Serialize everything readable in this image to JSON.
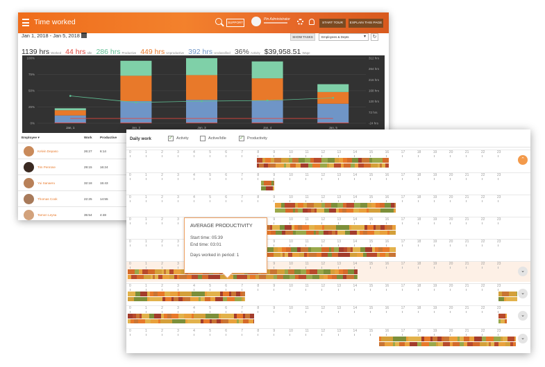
{
  "window1": {
    "title": "Time worked",
    "support_label": "SUPPORT",
    "user_name": "Pin Administrator",
    "start_tour_label": "START TOUR",
    "explain_label": "EXPLAIN THIS PAGE",
    "date_range": "Jan 1, 2018 - Jan 5, 2018",
    "show_tasks_label": "SHOW TASKS",
    "employee_select": "Employees & Depts",
    "stats": [
      {
        "value": "1139 hrs",
        "label": "Worked",
        "color": "#333333"
      },
      {
        "value": "44 hrs",
        "label": "Idle",
        "color": "#e0463c"
      },
      {
        "value": "286 hrs",
        "label": "Productive",
        "color": "#5fbf94"
      },
      {
        "value": "449 hrs",
        "label": "Unproductive",
        "color": "#e8792a"
      },
      {
        "value": "392 hrs",
        "label": "Unclassified",
        "color": "#6f95c7"
      },
      {
        "value": "36%",
        "label": "Activity",
        "color": "#555555"
      },
      {
        "value": "$39,958.51",
        "label": "Wage",
        "color": "#333333"
      }
    ],
    "table": {
      "headers": [
        "Employee",
        "Work",
        "Productive"
      ],
      "rows": [
        {
          "name": "Kelvin Depaso",
          "work": "26:27",
          "productive": "6:14",
          "photo_color": "#c98a5a"
        },
        {
          "name": "Tim Penrose",
          "work": "29:15",
          "productive": "16:24",
          "photo_color": "#3a2a22"
        },
        {
          "name": "Yui Sanaeru",
          "work": "32:18",
          "productive": "15:43",
          "photo_color": "#b88058"
        },
        {
          "name": "Thomas Cook",
          "work": "22:25",
          "productive": "14:55",
          "photo_color": "#a87a5a"
        },
        {
          "name": "Tamon Leysa",
          "work": "35:54",
          "productive": "4:48",
          "photo_color": "#d2a27c"
        }
      ]
    }
  },
  "chart_data": {
    "type": "bar",
    "categories": [
      "Jan, 1",
      "Jan, 2",
      "Jan, 3",
      "Jan, 4",
      "Jan, 5"
    ],
    "y_left_ticks": [
      "0%",
      "25%",
      "50%",
      "75%",
      "100%"
    ],
    "y_right_ticks": [
      "-24 hrs",
      "72 hrs",
      "120 hrs",
      "168 hrs",
      "216 hrs",
      "264 hrs",
      "312 hrs"
    ],
    "series": [
      {
        "name": "Unclassified",
        "color": "#6f95c7",
        "values": [
          12,
          34,
          36,
          35,
          30
        ]
      },
      {
        "name": "Unproductive",
        "color": "#e8792a",
        "values": [
          8,
          39,
          38,
          34,
          18
        ]
      },
      {
        "name": "Productive",
        "color": "#7fd0a8",
        "values": [
          3,
          23,
          26,
          26,
          12
        ]
      },
      {
        "name": "Idle",
        "color": "#e0463c",
        "values": [
          1,
          1,
          1,
          1,
          1
        ]
      }
    ],
    "line_values": [
      42,
      32,
      34,
      35,
      39
    ],
    "ylim": [
      0,
      100
    ],
    "grid": true
  },
  "window2": {
    "title": "Daily work",
    "checkboxes": [
      {
        "label": "Activity",
        "checked": true
      },
      {
        "label": "Active/Idle",
        "checked": false
      },
      {
        "label": "Productivity",
        "checked": true
      }
    ],
    "hours": [
      "0",
      "1",
      "2",
      "3",
      "4",
      "5",
      "6",
      "7",
      "8",
      "9",
      "10",
      "11",
      "12",
      "13",
      "14",
      "15",
      "16",
      "17",
      "18",
      "19",
      "20",
      "21",
      "22",
      "23"
    ],
    "tooltip": {
      "title": "AVERAGE PRODUCTIVITY",
      "start": "Start time: 05:39",
      "end": "End time: 03:01",
      "days": "Days worked in period: 1"
    }
  }
}
